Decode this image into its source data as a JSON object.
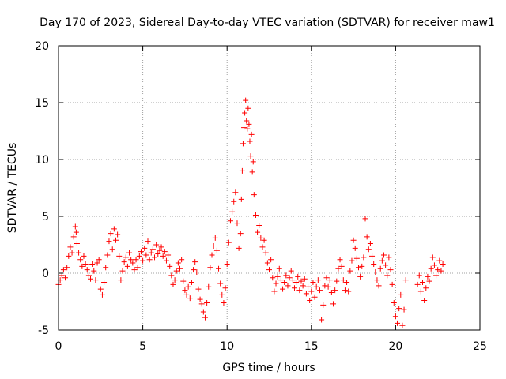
{
  "chart_data": {
    "type": "scatter",
    "title": "Day 170 of 2023, Sidereal Day-to-day VTEC variation (SDTVAR) for receiver maw1",
    "xlabel": "GPS time / hours",
    "ylabel": "SDTVAR / TECUs",
    "xlim": [
      0,
      25
    ],
    "ylim": [
      -5,
      20
    ],
    "xticks": [
      0,
      5,
      10,
      15,
      20,
      25
    ],
    "yticks": [
      -5,
      0,
      5,
      10,
      15,
      20
    ],
    "grid": true,
    "marker": "+",
    "color": "#ff0000",
    "series": [
      {
        "name": "SDTVAR",
        "points": [
          [
            0.0,
            -1.0
          ],
          [
            0.1,
            -0.6
          ],
          [
            0.2,
            -0.2
          ],
          [
            0.3,
            0.3
          ],
          [
            0.4,
            -0.4
          ],
          [
            0.5,
            0.5
          ],
          [
            0.6,
            1.5
          ],
          [
            0.7,
            2.3
          ],
          [
            0.8,
            1.8
          ],
          [
            0.9,
            3.2
          ],
          [
            1.0,
            4.1
          ],
          [
            1.05,
            3.6
          ],
          [
            1.1,
            2.6
          ],
          [
            1.2,
            1.8
          ],
          [
            1.3,
            1.2
          ],
          [
            1.4,
            0.6
          ],
          [
            1.5,
            1.5
          ],
          [
            1.6,
            0.8
          ],
          [
            1.7,
            0.3
          ],
          [
            1.8,
            -0.2
          ],
          [
            1.9,
            -0.5
          ],
          [
            2.0,
            0.8
          ],
          [
            2.1,
            0.2
          ],
          [
            2.2,
            -0.6
          ],
          [
            2.3,
            0.9
          ],
          [
            2.4,
            1.2
          ],
          [
            2.5,
            -1.4
          ],
          [
            2.6,
            -1.9
          ],
          [
            2.7,
            -0.8
          ],
          [
            2.8,
            0.5
          ],
          [
            2.9,
            1.6
          ],
          [
            3.0,
            2.8
          ],
          [
            3.1,
            3.5
          ],
          [
            3.2,
            2.1
          ],
          [
            3.3,
            3.9
          ],
          [
            3.4,
            2.9
          ],
          [
            3.5,
            3.4
          ],
          [
            3.6,
            1.5
          ],
          [
            3.7,
            -0.6
          ],
          [
            3.8,
            0.2
          ],
          [
            3.9,
            1.0
          ],
          [
            4.0,
            1.4
          ],
          [
            4.1,
            0.6
          ],
          [
            4.2,
            1.8
          ],
          [
            4.3,
            1.2
          ],
          [
            4.4,
            0.9
          ],
          [
            4.5,
            0.3
          ],
          [
            4.6,
            1.2
          ],
          [
            4.7,
            0.5
          ],
          [
            4.8,
            1.5
          ],
          [
            4.9,
            1.9
          ],
          [
            5.0,
            1.1
          ],
          [
            5.1,
            2.2
          ],
          [
            5.2,
            1.6
          ],
          [
            5.3,
            2.8
          ],
          [
            5.4,
            1.2
          ],
          [
            5.5,
            1.8
          ],
          [
            5.6,
            2.1
          ],
          [
            5.7,
            1.4
          ],
          [
            5.8,
            2.5
          ],
          [
            5.9,
            1.7
          ],
          [
            6.0,
            2.0
          ],
          [
            6.1,
            2.3
          ],
          [
            6.2,
            1.5
          ],
          [
            6.3,
            1.9
          ],
          [
            6.4,
            1.1
          ],
          [
            6.5,
            1.6
          ],
          [
            6.6,
            0.6
          ],
          [
            6.7,
            -0.2
          ],
          [
            6.8,
            -1.0
          ],
          [
            6.9,
            -0.6
          ],
          [
            7.0,
            0.2
          ],
          [
            7.1,
            0.9
          ],
          [
            7.2,
            0.4
          ],
          [
            7.3,
            1.2
          ],
          [
            7.4,
            -0.7
          ],
          [
            7.5,
            -1.5
          ],
          [
            7.6,
            -1.9
          ],
          [
            7.7,
            -1.2
          ],
          [
            7.8,
            -2.2
          ],
          [
            7.9,
            -0.8
          ],
          [
            8.0,
            0.3
          ],
          [
            8.1,
            1.0
          ],
          [
            8.2,
            0.1
          ],
          [
            8.3,
            -1.4
          ],
          [
            8.4,
            -2.3
          ],
          [
            8.5,
            -2.7
          ],
          [
            8.6,
            -3.4
          ],
          [
            8.7,
            -3.9
          ],
          [
            8.8,
            -2.6
          ],
          [
            8.9,
            -1.2
          ],
          [
            9.0,
            0.5
          ],
          [
            9.1,
            1.6
          ],
          [
            9.2,
            2.4
          ],
          [
            9.3,
            3.1
          ],
          [
            9.4,
            2.0
          ],
          [
            9.5,
            0.4
          ],
          [
            9.6,
            -0.9
          ],
          [
            9.7,
            -1.9
          ],
          [
            9.8,
            -2.6
          ],
          [
            9.9,
            -1.3
          ],
          [
            10.0,
            0.8
          ],
          [
            10.1,
            2.7
          ],
          [
            10.2,
            4.6
          ],
          [
            10.3,
            5.4
          ],
          [
            10.4,
            6.3
          ],
          [
            10.5,
            7.1
          ],
          [
            10.6,
            4.4
          ],
          [
            10.7,
            2.2
          ],
          [
            10.8,
            3.5
          ],
          [
            10.85,
            6.5
          ],
          [
            10.9,
            9.0
          ],
          [
            10.95,
            11.4
          ],
          [
            11.0,
            12.8
          ],
          [
            11.05,
            14.1
          ],
          [
            11.1,
            15.2
          ],
          [
            11.15,
            13.4
          ],
          [
            11.2,
            12.7
          ],
          [
            11.25,
            14.5
          ],
          [
            11.3,
            13.1
          ],
          [
            11.35,
            11.6
          ],
          [
            11.4,
            10.3
          ],
          [
            11.45,
            12.2
          ],
          [
            11.5,
            8.9
          ],
          [
            11.55,
            9.8
          ],
          [
            11.6,
            6.9
          ],
          [
            11.7,
            5.1
          ],
          [
            11.8,
            3.6
          ],
          [
            11.9,
            4.2
          ],
          [
            12.0,
            3.1
          ],
          [
            12.1,
            2.3
          ],
          [
            12.2,
            2.9
          ],
          [
            12.3,
            1.8
          ],
          [
            12.4,
            0.9
          ],
          [
            12.5,
            0.3
          ],
          [
            12.6,
            1.2
          ],
          [
            12.7,
            -0.4
          ],
          [
            12.8,
            -1.6
          ],
          [
            12.9,
            -0.9
          ],
          [
            13.0,
            -0.3
          ],
          [
            13.1,
            0.4
          ],
          [
            13.2,
            -0.6
          ],
          [
            13.3,
            -1.4
          ],
          [
            13.4,
            -0.8
          ],
          [
            13.5,
            -0.2
          ],
          [
            13.6,
            -1.1
          ],
          [
            13.7,
            -0.4
          ],
          [
            13.8,
            0.2
          ],
          [
            13.9,
            -0.6
          ],
          [
            14.0,
            -1.3
          ],
          [
            14.1,
            -0.8
          ],
          [
            14.2,
            -0.3
          ],
          [
            14.3,
            -1.5
          ],
          [
            14.4,
            -0.7
          ],
          [
            14.5,
            -1.1
          ],
          [
            14.6,
            -0.5
          ],
          [
            14.7,
            -1.8
          ],
          [
            14.8,
            -1.2
          ],
          [
            14.9,
            -2.4
          ],
          [
            15.0,
            -1.6
          ],
          [
            15.1,
            -0.8
          ],
          [
            15.2,
            -2.1
          ],
          [
            15.3,
            -1.2
          ],
          [
            15.4,
            -0.6
          ],
          [
            15.5,
            -1.5
          ],
          [
            15.6,
            -4.1
          ],
          [
            15.7,
            -2.8
          ],
          [
            15.8,
            -1.1
          ],
          [
            15.9,
            -0.4
          ],
          [
            16.0,
            -1.2
          ],
          [
            16.1,
            -0.6
          ],
          [
            16.2,
            -1.7
          ],
          [
            16.3,
            -2.7
          ],
          [
            16.4,
            -1.5
          ],
          [
            16.5,
            -0.7
          ],
          [
            16.6,
            0.4
          ],
          [
            16.7,
            1.2
          ],
          [
            16.8,
            0.6
          ],
          [
            16.9,
            -0.6
          ],
          [
            17.0,
            -1.5
          ],
          [
            17.1,
            -0.8
          ],
          [
            17.2,
            -1.6
          ],
          [
            17.3,
            0.2
          ],
          [
            17.4,
            1.1
          ],
          [
            17.5,
            2.9
          ],
          [
            17.6,
            2.2
          ],
          [
            17.7,
            1.3
          ],
          [
            17.8,
            0.5
          ],
          [
            17.9,
            -0.3
          ],
          [
            18.0,
            0.6
          ],
          [
            18.1,
            1.4
          ],
          [
            18.2,
            4.8
          ],
          [
            18.3,
            3.2
          ],
          [
            18.4,
            2.1
          ],
          [
            18.5,
            2.6
          ],
          [
            18.6,
            1.5
          ],
          [
            18.7,
            0.8
          ],
          [
            18.8,
            0.1
          ],
          [
            18.9,
            -0.6
          ],
          [
            19.0,
            -1.1
          ],
          [
            19.1,
            0.4
          ],
          [
            19.2,
            1.1
          ],
          [
            19.3,
            1.6
          ],
          [
            19.4,
            0.7
          ],
          [
            19.5,
            -0.2
          ],
          [
            19.6,
            1.4
          ],
          [
            19.7,
            0.3
          ],
          [
            19.8,
            -1.0
          ],
          [
            19.9,
            -2.6
          ],
          [
            20.0,
            -3.8
          ],
          [
            20.1,
            -4.4
          ],
          [
            20.2,
            -3.1
          ],
          [
            20.3,
            -1.9
          ],
          [
            20.4,
            -4.6
          ],
          [
            20.5,
            -3.2
          ],
          [
            20.6,
            -0.6
          ],
          [
            21.3,
            -1.0
          ],
          [
            21.4,
            -0.2
          ],
          [
            21.5,
            -1.6
          ],
          [
            21.6,
            -0.8
          ],
          [
            21.7,
            -2.4
          ],
          [
            21.8,
            -1.3
          ],
          [
            21.9,
            -0.3
          ],
          [
            22.0,
            -0.7
          ],
          [
            22.1,
            0.4
          ],
          [
            22.2,
            1.4
          ],
          [
            22.3,
            0.7
          ],
          [
            22.4,
            -0.2
          ],
          [
            22.5,
            0.3
          ],
          [
            22.6,
            1.1
          ],
          [
            22.7,
            0.2
          ],
          [
            22.8,
            0.8
          ]
        ]
      }
    ]
  }
}
